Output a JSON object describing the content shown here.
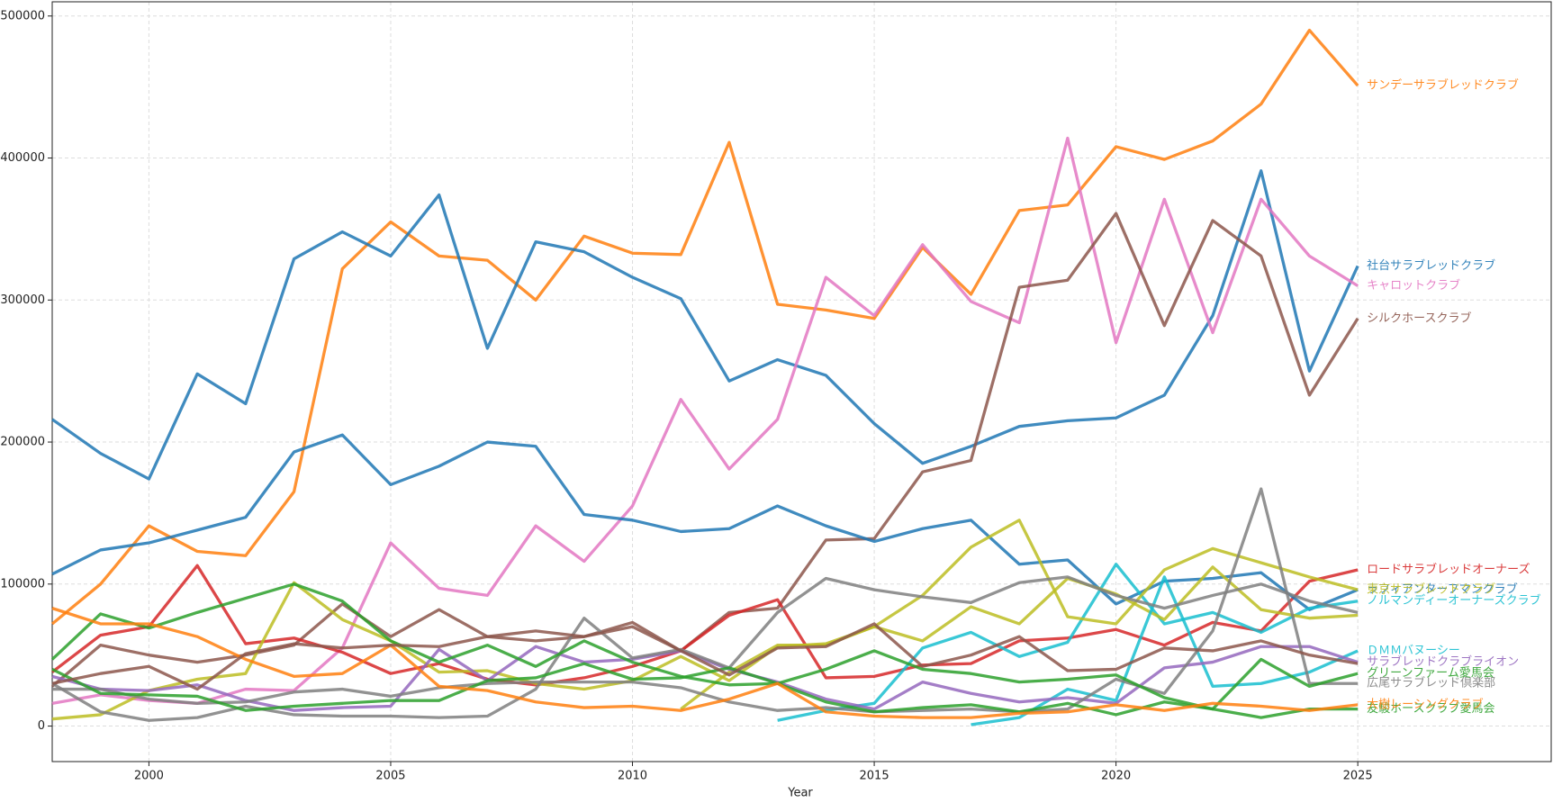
{
  "chart_data": {
    "type": "line",
    "x_label": "Year",
    "x": [
      1998,
      1999,
      2000,
      2001,
      2002,
      2003,
      2004,
      2005,
      2006,
      2007,
      2008,
      2009,
      2010,
      2011,
      2012,
      2013,
      2014,
      2015,
      2016,
      2017,
      2018,
      2019,
      2020,
      2021,
      2022,
      2023,
      2024,
      2025
    ],
    "xlim": [
      1998,
      2029
    ],
    "xticks": [
      2000,
      2005,
      2010,
      2015,
      2020,
      2025
    ],
    "ylim": [
      -25000,
      510000
    ],
    "yticks": [
      0,
      100000,
      200000,
      300000,
      400000,
      500000
    ],
    "grid": true,
    "series": [
      {
        "name": "サンデーサラブレッドクラブ",
        "color": "#ff7f0e",
        "values": [
          72000,
          100000,
          141000,
          123000,
          120000,
          165000,
          322000,
          355000,
          331000,
          328000,
          300000,
          345000,
          333000,
          332000,
          411000,
          297000,
          293000,
          287000,
          337000,
          304000,
          363000,
          367000,
          408000,
          399000,
          412000,
          438000,
          490000,
          451000
        ]
      },
      {
        "name": "社台サラブレッドクラブ",
        "color": "#1f77b4",
        "values": [
          216000,
          192000,
          174000,
          248000,
          227000,
          329000,
          348000,
          331000,
          374000,
          266000,
          341000,
          334000,
          316000,
          301000,
          243000,
          258000,
          247000,
          213000,
          185000,
          197000,
          211000,
          215000,
          217000,
          233000,
          289000,
          391000,
          250000,
          324000
        ]
      },
      {
        "name": "キャロットクラブ",
        "color": "#e377c2",
        "values": [
          16000,
          22000,
          18000,
          16000,
          26000,
          25000,
          55000,
          129000,
          97000,
          92000,
          141000,
          116000,
          155000,
          230000,
          181000,
          216000,
          316000,
          289000,
          339000,
          299000,
          284000,
          414000,
          270000,
          371000,
          277000,
          371000,
          331000,
          310000
        ]
      },
      {
        "name": "シルクホースクラブ",
        "color": "#8c564b",
        "values": [
          28000,
          57000,
          50000,
          45000,
          50000,
          57000,
          86000,
          63000,
          82000,
          63000,
          60000,
          63000,
          73000,
          53000,
          80000,
          83000,
          131000,
          132000,
          179000,
          187000,
          309000,
          314000,
          361000,
          282000,
          356000,
          331000,
          233000,
          287000
        ]
      },
      {
        "name": "ロードサラブレッドオーナーズ",
        "color": "#d62728",
        "values": [
          38000,
          64000,
          70000,
          113000,
          58000,
          62000,
          52000,
          37000,
          44000,
          33000,
          29000,
          34000,
          42000,
          53000,
          78000,
          89000,
          34000,
          35000,
          43000,
          44000,
          60000,
          62000,
          68000,
          57000,
          73000,
          67000,
          102000,
          110000
        ]
      },
      {
        "name": "ラフィアンターフマンクラブ",
        "color": "#1f77b4",
        "values": [
          107000,
          124000,
          129000,
          138000,
          147000,
          193000,
          205000,
          170000,
          183000,
          200000,
          197000,
          149000,
          145000,
          137000,
          139000,
          155000,
          141000,
          130000,
          139000,
          145000,
          114000,
          117000,
          86000,
          102000,
          104000,
          108000,
          82000,
          96000
        ]
      },
      {
        "name": "ノルマンディーオーナーズクラブ",
        "color": "#17becf",
        "values": [
          null,
          null,
          null,
          null,
          null,
          null,
          null,
          null,
          null,
          null,
          null,
          null,
          null,
          null,
          null,
          4000,
          11000,
          16000,
          55000,
          66000,
          49000,
          59000,
          114000,
          72000,
          80000,
          66000,
          83000,
          88000
        ]
      },
      {
        "name": "東京サラブレッドクラブ",
        "color": "#bcbd22",
        "values": [
          5000,
          8000,
          25000,
          33000,
          37000,
          101000,
          75000,
          60000,
          38000,
          39000,
          30000,
          26000,
          32000,
          49000,
          32000,
          56000,
          58000,
          70000,
          92000,
          126000,
          145000,
          77000,
          72000,
          110000,
          125000,
          115000,
          105000,
          96000
        ]
      },
      {
        "color": "#bcbd22",
        "values": [
          null,
          null,
          null,
          null,
          null,
          null,
          null,
          null,
          null,
          null,
          null,
          null,
          null,
          12000,
          38000,
          57000,
          57000,
          70000,
          60000,
          84000,
          72000,
          104000,
          93000,
          75000,
          112000,
          82000,
          76000,
          78000
        ]
      },
      {
        "name": "ＤＭＭバヌーシー",
        "color": "#17becf",
        "values": [
          null,
          null,
          null,
          null,
          null,
          null,
          null,
          null,
          null,
          null,
          null,
          null,
          null,
          null,
          null,
          null,
          null,
          null,
          null,
          1000,
          6000,
          26000,
          18000,
          105000,
          28000,
          30000,
          38000,
          53000
        ]
      },
      {
        "name": "サラブレッドクラブライオン",
        "color": "#9467bd",
        "values": [
          35000,
          26000,
          25000,
          29000,
          18000,
          11000,
          13000,
          14000,
          54000,
          32000,
          56000,
          45000,
          47000,
          53000,
          40000,
          31000,
          19000,
          12000,
          31000,
          23000,
          17000,
          20000,
          16000,
          41000,
          45000,
          56000,
          56000,
          45000
        ]
      },
      {
        "color": "#7f7f7f",
        "values": [
          30000,
          10000,
          4000,
          6000,
          14000,
          8000,
          7000,
          7000,
          6000,
          7000,
          26000,
          76000,
          48000,
          54000,
          41000,
          80000,
          104000,
          96000,
          91000,
          87000,
          101000,
          105000,
          92000,
          83000,
          92000,
          100000,
          88000,
          80000
        ]
      },
      {
        "name": "広尾サラブレッド倶楽部",
        "color": "#7f7f7f",
        "values": [
          26000,
          26000,
          19000,
          16000,
          17000,
          24000,
          26000,
          21000,
          27000,
          30000,
          31000,
          31000,
          31000,
          27000,
          17000,
          11000,
          13000,
          10000,
          11000,
          12000,
          10000,
          12000,
          33000,
          23000,
          67000,
          167000,
          30000,
          30000
        ]
      },
      {
        "name": "グリーンファーム愛馬会",
        "color": "#2ca02c",
        "values": [
          47000,
          79000,
          69000,
          80000,
          90000,
          100000,
          88000,
          60000,
          45000,
          57000,
          42000,
          60000,
          45000,
          35000,
          29000,
          30000,
          40000,
          53000,
          40000,
          37000,
          31000,
          33000,
          36000,
          20000,
          12000,
          47000,
          28000,
          37000
        ]
      },
      {
        "name": "友駿ホースクラブ愛馬会",
        "color": "#2ca02c",
        "values": [
          40000,
          23000,
          22000,
          21000,
          11000,
          14000,
          16000,
          18000,
          18000,
          32000,
          34000,
          44000,
          33000,
          34000,
          41000,
          30000,
          17000,
          10000,
          13000,
          15000,
          10000,
          16000,
          8000,
          17000,
          12000,
          6000,
          12000,
          12000
        ]
      },
      {
        "name": "大樹レーシングクラブ",
        "color": "#ff7f0e",
        "values": [
          83000,
          72000,
          72000,
          63000,
          47000,
          35000,
          37000,
          57000,
          28000,
          25000,
          17000,
          13000,
          14000,
          11000,
          19000,
          30000,
          10000,
          7000,
          6000,
          6000,
          9000,
          10000,
          15000,
          11000,
          16000,
          14000,
          11000,
          15000
        ]
      },
      {
        "color": "#8c564b",
        "values": [
          30000,
          37000,
          42000,
          26000,
          51000,
          58000,
          55000,
          57000,
          56000,
          63000,
          67000,
          63000,
          70000,
          53000,
          36000,
          55000,
          56000,
          72000,
          42000,
          50000,
          63000,
          39000,
          40000,
          55000,
          53000,
          60000,
          50000,
          44000
        ]
      }
    ]
  }
}
